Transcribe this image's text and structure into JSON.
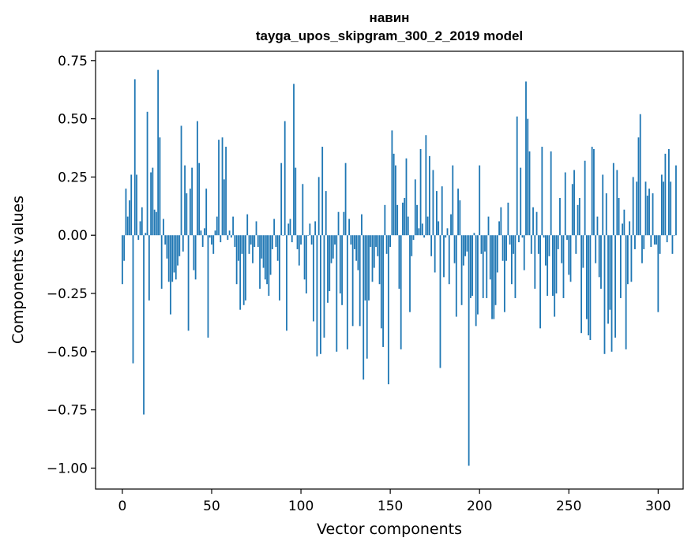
{
  "chart_data": {
    "type": "bar",
    "title": "навин",
    "subtitle": "tayga_upos_skipgram_300_2_2019 model",
    "xlabel": "Vector components",
    "ylabel": "Components values",
    "xlim": [
      -15,
      314
    ],
    "ylim": [
      -1.09,
      0.79
    ],
    "xticks": [
      0,
      50,
      100,
      150,
      200,
      250,
      300
    ],
    "xtick_labels": [
      "0",
      "50",
      "100",
      "150",
      "200",
      "250",
      "300"
    ],
    "yticks": [
      0.75,
      0.5,
      0.25,
      0.0,
      -0.25,
      -0.5,
      -0.75,
      -1.0
    ],
    "ytick_labels": [
      "0.75",
      "0.50",
      "0.25",
      "0.00",
      "−0.25",
      "−0.50",
      "−0.75",
      "−1.00"
    ],
    "bar_color": "#1f77b4",
    "grid": false,
    "values": [
      -0.21,
      -0.11,
      0.2,
      0.08,
      0.15,
      0.26,
      -0.55,
      0.67,
      0.26,
      -0.02,
      0.06,
      0.12,
      -0.77,
      0.01,
      0.53,
      -0.28,
      0.27,
      0.29,
      0.11,
      0.1,
      0.71,
      0.42,
      -0.23,
      0.07,
      -0.04,
      -0.1,
      -0.2,
      -0.34,
      -0.2,
      -0.16,
      -0.19,
      -0.13,
      -0.09,
      0.47,
      -0.07,
      0.3,
      0.18,
      -0.41,
      0.2,
      0.29,
      -0.15,
      -0.19,
      0.49,
      0.31,
      0.02,
      -0.05,
      0.03,
      0.2,
      -0.44,
      -0.01,
      -0.04,
      -0.08,
      0.02,
      0.08,
      0.41,
      -0.03,
      0.42,
      0.24,
      0.38,
      -0.02,
      0.02,
      -0.01,
      0.08,
      -0.05,
      -0.21,
      -0.11,
      -0.32,
      -0.08,
      -0.3,
      -0.28,
      0.09,
      -0.08,
      -0.04,
      -0.12,
      -0.05,
      0.06,
      -0.05,
      -0.23,
      -0.1,
      -0.14,
      -0.19,
      -0.21,
      -0.26,
      -0.17,
      -0.06,
      0.07,
      -0.05,
      -0.11,
      -0.28,
      0.31,
      0.0,
      0.49,
      -0.41,
      0.05,
      0.07,
      -0.03,
      0.65,
      0.29,
      -0.06,
      -0.13,
      -0.04,
      0.22,
      -0.19,
      -0.25,
      0.0,
      0.05,
      -0.04,
      -0.37,
      0.06,
      -0.52,
      0.25,
      -0.51,
      0.38,
      -0.44,
      0.19,
      -0.29,
      -0.24,
      -0.12,
      -0.1,
      -0.04,
      -0.5,
      0.1,
      -0.25,
      -0.3,
      0.1,
      0.31,
      -0.49,
      0.07,
      -0.04,
      -0.39,
      -0.06,
      -0.11,
      -0.15,
      -0.39,
      0.09,
      -0.62,
      -0.28,
      -0.53,
      -0.28,
      -0.05,
      -0.2,
      -0.14,
      -0.05,
      -0.09,
      -0.21,
      -0.4,
      -0.48,
      0.13,
      -0.08,
      -0.64,
      -0.05,
      0.45,
      0.35,
      0.3,
      0.13,
      -0.23,
      -0.49,
      0.14,
      0.16,
      0.33,
      0.08,
      -0.33,
      -0.09,
      -0.02,
      0.24,
      0.13,
      0.03,
      0.37,
      0.05,
      -0.01,
      0.43,
      0.08,
      0.34,
      -0.09,
      0.28,
      -0.16,
      0.19,
      0.06,
      -0.57,
      0.21,
      -0.18,
      -0.01,
      0.03,
      -0.21,
      0.09,
      0.3,
      -0.12,
      -0.35,
      0.2,
      0.15,
      -0.3,
      -0.13,
      -0.09,
      -0.07,
      -0.99,
      -0.27,
      -0.26,
      0.01,
      -0.39,
      -0.34,
      0.3,
      -0.08,
      -0.27,
      -0.07,
      -0.27,
      0.08,
      -0.19,
      -0.36,
      -0.36,
      -0.3,
      -0.16,
      0.06,
      0.12,
      -0.11,
      -0.33,
      -0.11,
      0.14,
      -0.04,
      -0.21,
      -0.08,
      -0.27,
      0.51,
      -0.03,
      0.29,
      -0.01,
      -0.15,
      0.66,
      0.5,
      0.36,
      -0.08,
      0.12,
      -0.23,
      0.1,
      -0.08,
      -0.4,
      0.38,
      -0.01,
      -0.13,
      -0.26,
      -0.09,
      0.36,
      -0.26,
      -0.35,
      -0.25,
      -0.06,
      0.16,
      -0.12,
      -0.27,
      0.27,
      -0.02,
      -0.17,
      -0.2,
      0.22,
      0.28,
      -0.08,
      0.13,
      0.16,
      -0.42,
      -0.14,
      0.32,
      -0.36,
      -0.43,
      -0.45,
      0.38,
      0.37,
      -0.12,
      0.08,
      -0.18,
      -0.23,
      0.26,
      -0.51,
      0.18,
      -0.38,
      -0.32,
      -0.5,
      0.31,
      -0.44,
      0.28,
      0.16,
      -0.27,
      0.05,
      0.11,
      -0.49,
      -0.21,
      0.06,
      -0.2,
      0.25,
      -0.06,
      0.23,
      0.42,
      0.52,
      -0.12,
      -0.06,
      0.23,
      0.17,
      0.2,
      -0.05,
      0.18,
      -0.04,
      -0.04,
      -0.33,
      -0.08,
      0.26,
      0.23,
      0.35,
      -0.03,
      0.37,
      0.23,
      -0.08,
      0.0,
      0.3
    ]
  }
}
